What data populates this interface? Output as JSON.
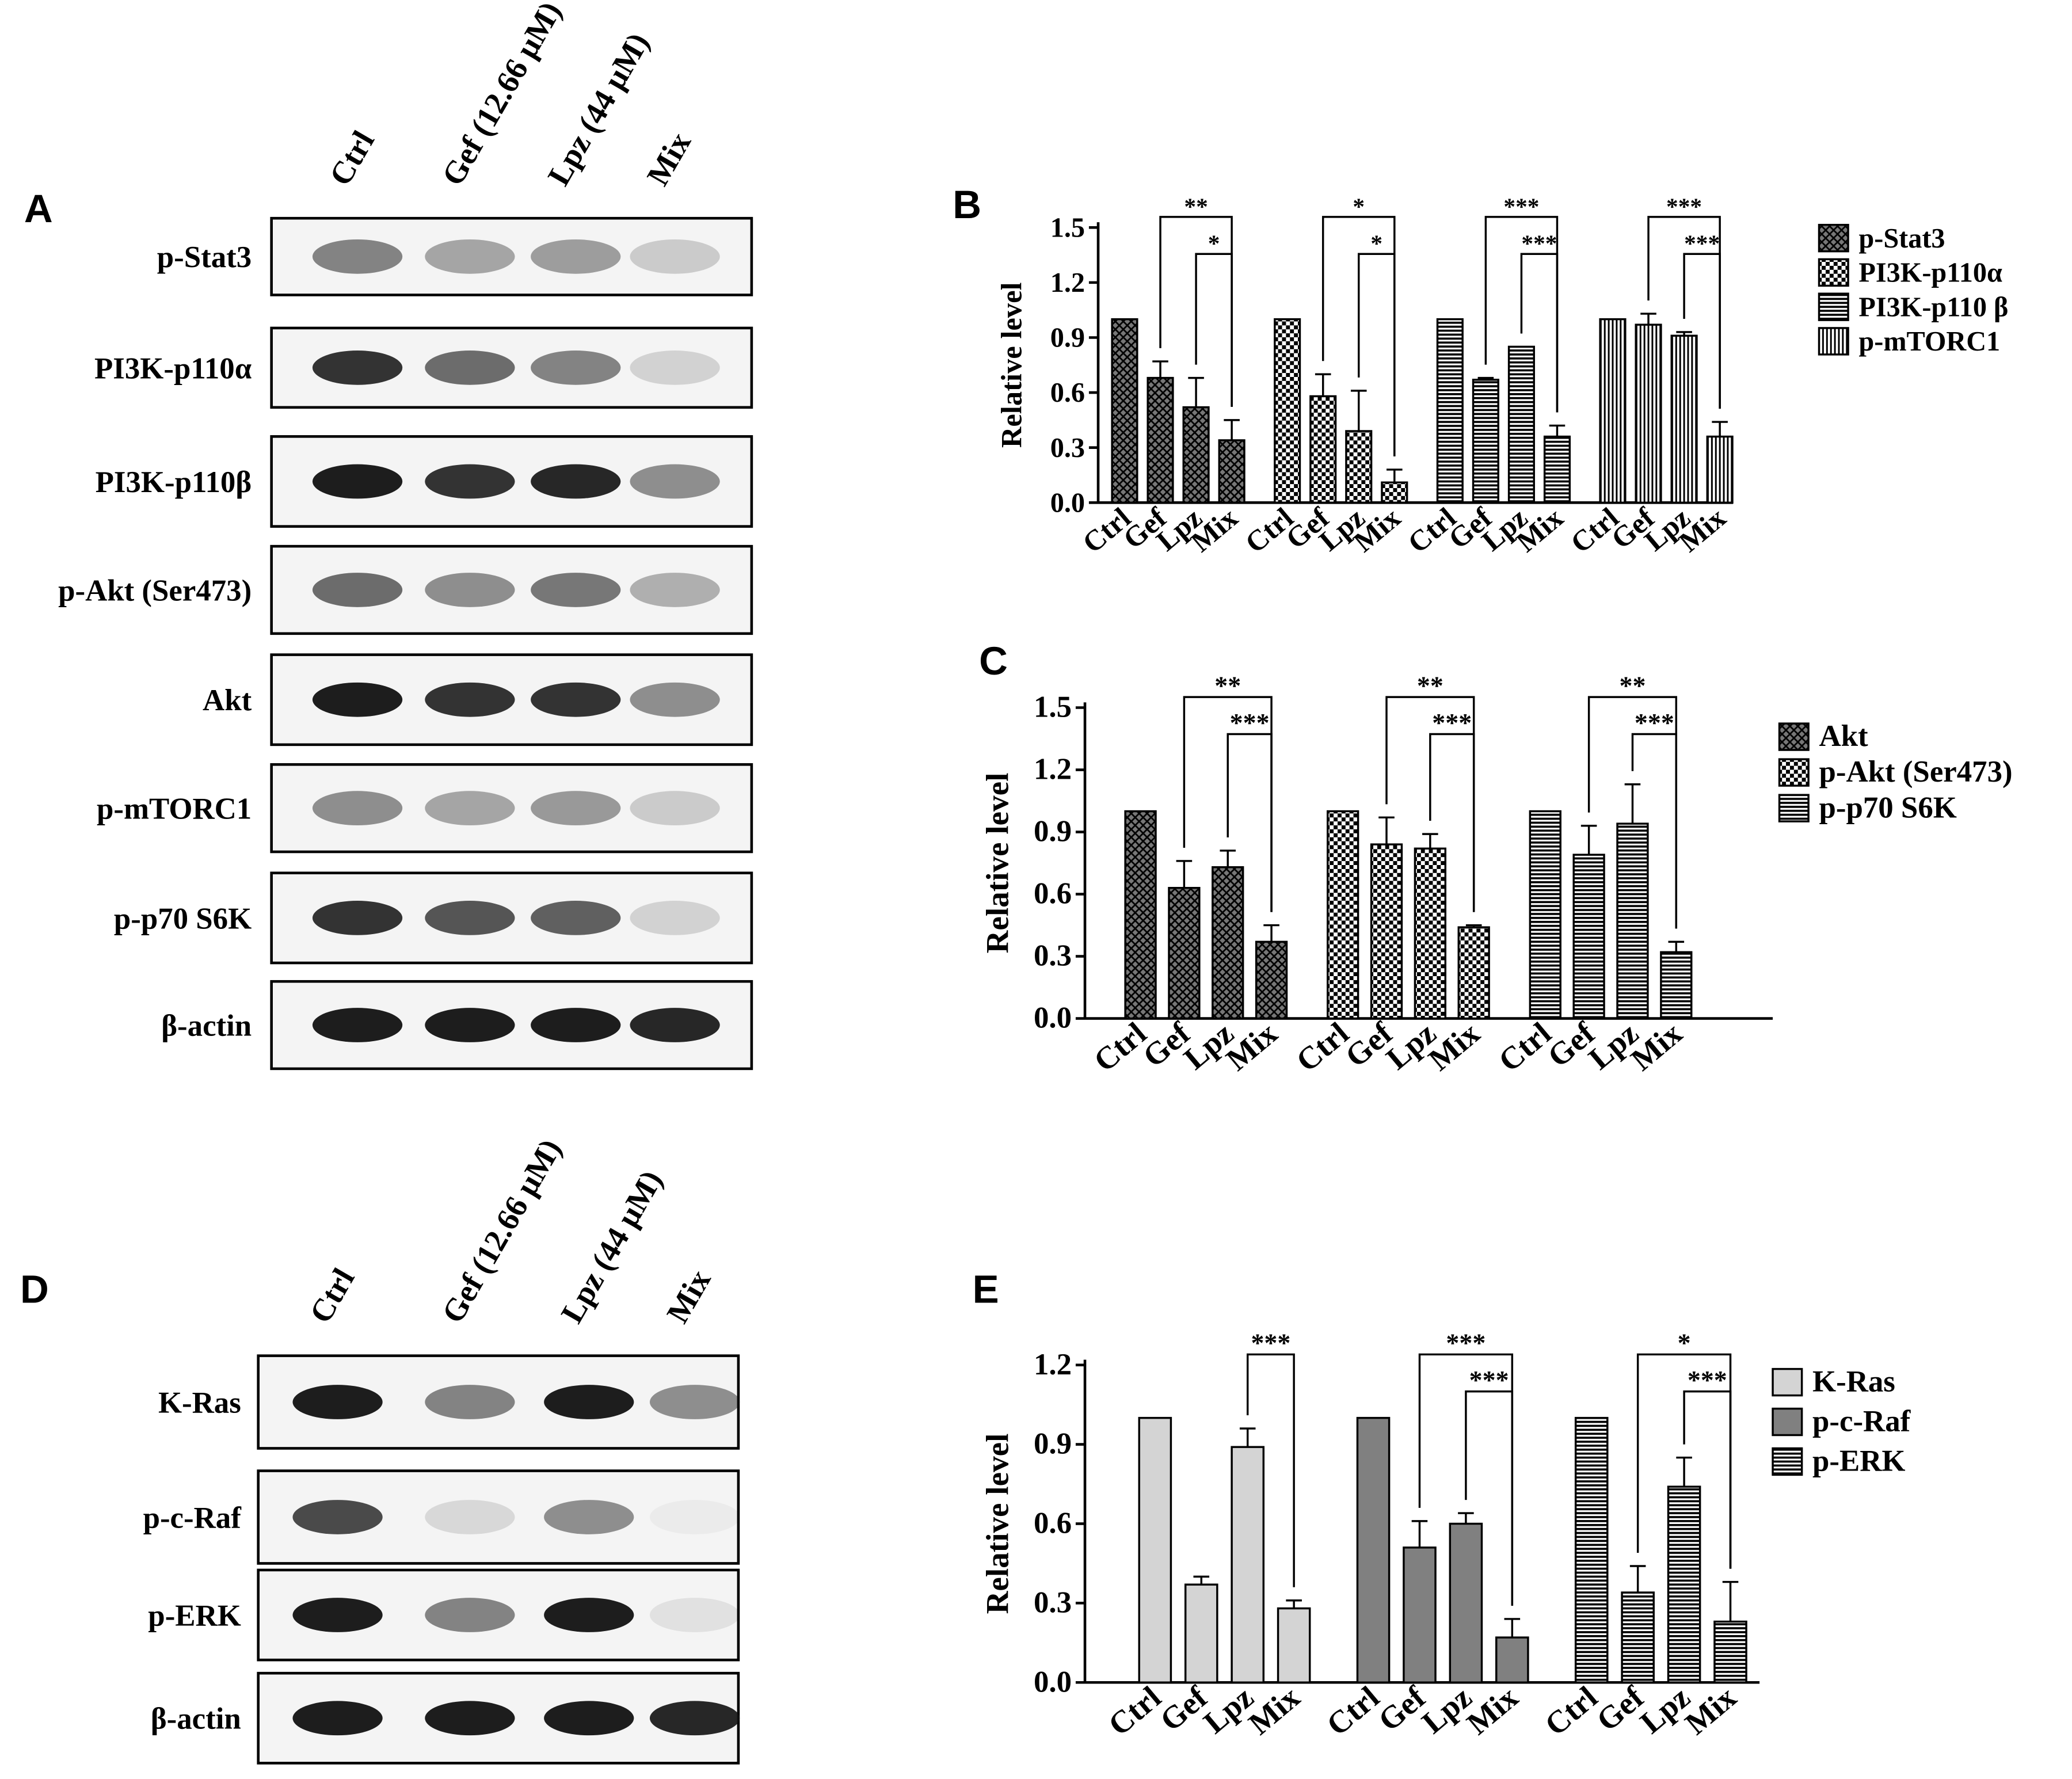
{
  "blots": [
    {
      "letter": "A",
      "lanes": [
        "Ctrl",
        "Gef (12.66 μM)",
        "Lpz (44 μM)",
        "Mix"
      ],
      "rows": [
        "p-Stat3",
        "PI3K-p110α",
        "PI3K-p110β",
        "p-Akt (Ser473)",
        "Akt",
        "p-mTORC1",
        "p-p70 S6K",
        "β-actin"
      ]
    },
    {
      "letter": "D",
      "lanes": [
        "Ctrl",
        "Gef (12.66 μM)",
        "Lpz (44 μM)",
        "Mix"
      ],
      "rows": [
        "K-Ras",
        "p-c-Raf",
        "p-ERK",
        "β-actin"
      ]
    }
  ],
  "chart_data": [
    {
      "type": "bar",
      "letter": "B",
      "y_label": "Relative level",
      "ylim": [
        0,
        1.5
      ],
      "yticks": [
        {
          "value": 0,
          "label": "0.0"
        },
        0.3,
        0.6,
        0.9,
        1.2,
        1.5
      ],
      "categories": [
        "Ctrl",
        "Gef",
        "Lpz",
        "Mix"
      ],
      "series": [
        {
          "name": "p-Stat3",
          "pattern": "crosshatch",
          "color": "#000000",
          "values": [
            1,
            0.68,
            0.52,
            0.34
          ],
          "errors": [
            0,
            0.09,
            0.16,
            0.11
          ],
          "significance": [
            "**",
            "*"
          ]
        },
        {
          "name": "PI3K-p110α",
          "pattern": "checker",
          "color": "#000000",
          "values": [
            1,
            0.58,
            0.39,
            0.11
          ],
          "errors": [
            0,
            0.12,
            0.22,
            0.07
          ],
          "significance": [
            "*",
            "*"
          ]
        },
        {
          "name": "PI3K-p110 β",
          "pattern": "hlines",
          "color": "#000000",
          "values": [
            1,
            0.67,
            0.85,
            0.36
          ],
          "errors": [
            0,
            0.01,
            0,
            0.06
          ],
          "significance": [
            "***",
            "***"
          ]
        },
        {
          "name": "p-mTORC1",
          "pattern": "vlines",
          "color": "#000000",
          "values": [
            1,
            0.97,
            0.91,
            0.36
          ],
          "errors": [
            0,
            0.06,
            0.02,
            0.08
          ],
          "significance": [
            "***",
            "***"
          ]
        }
      ]
    },
    {
      "type": "bar",
      "letter": "C",
      "y_label": "Relative level",
      "ylim": [
        0,
        1.5
      ],
      "yticks": [
        {
          "value": 0,
          "label": "0.0"
        },
        0.3,
        0.6,
        0.9,
        1.2,
        1.5
      ],
      "categories": [
        "Ctrl",
        "Gef",
        "Lpz",
        "Mix"
      ],
      "series": [
        {
          "name": "Akt",
          "pattern": "crosshatch",
          "color": "#000000",
          "values": [
            1,
            0.63,
            0.73,
            0.37
          ],
          "errors": [
            0,
            0.13,
            0.08,
            0.08
          ],
          "significance": [
            "**",
            "***"
          ]
        },
        {
          "name": "p-Akt (Ser473)",
          "pattern": "checker",
          "color": "#000000",
          "values": [
            1,
            0.84,
            0.82,
            0.44
          ],
          "errors": [
            0,
            0.13,
            0.07,
            0.01
          ],
          "significance": [
            "**",
            "***"
          ]
        },
        {
          "name": "p-p70 S6K",
          "pattern": "hlines",
          "color": "#000000",
          "values": [
            1,
            0.79,
            0.94,
            0.32
          ],
          "errors": [
            0,
            0.14,
            0.19,
            0.05
          ],
          "significance": [
            "**",
            "***"
          ]
        }
      ]
    },
    {
      "type": "bar",
      "letter": "E",
      "y_label": "Relative level",
      "ylim": [
        0,
        1.2
      ],
      "yticks": [
        {
          "value": 0,
          "label": "0.0"
        },
        0.3,
        0.6,
        0.9,
        1.2
      ],
      "categories": [
        "Ctrl",
        "Gef",
        "Lpz",
        "Mix"
      ],
      "series": [
        {
          "name": "K-Ras",
          "pattern": "solid",
          "color": "#d4d4d4",
          "values": [
            1,
            0.37,
            0.89,
            0.28
          ],
          "errors": [
            0,
            0.03,
            0.07,
            0.03
          ],
          "significance": [
            "***"
          ]
        },
        {
          "name": "p-c-Raf",
          "pattern": "solid",
          "color": "#808080",
          "values": [
            1,
            0.51,
            0.6,
            0.17
          ],
          "errors": [
            0,
            0.1,
            0.04,
            0.07
          ],
          "significance": [
            "***",
            "***"
          ]
        },
        {
          "name": "p-ERK",
          "pattern": "hlines",
          "color": "#000000",
          "values": [
            1,
            0.34,
            0.74,
            0.23
          ],
          "errors": [
            0,
            0.1,
            0.11,
            0.15
          ],
          "significance": [
            "*",
            "***"
          ]
        }
      ]
    }
  ]
}
